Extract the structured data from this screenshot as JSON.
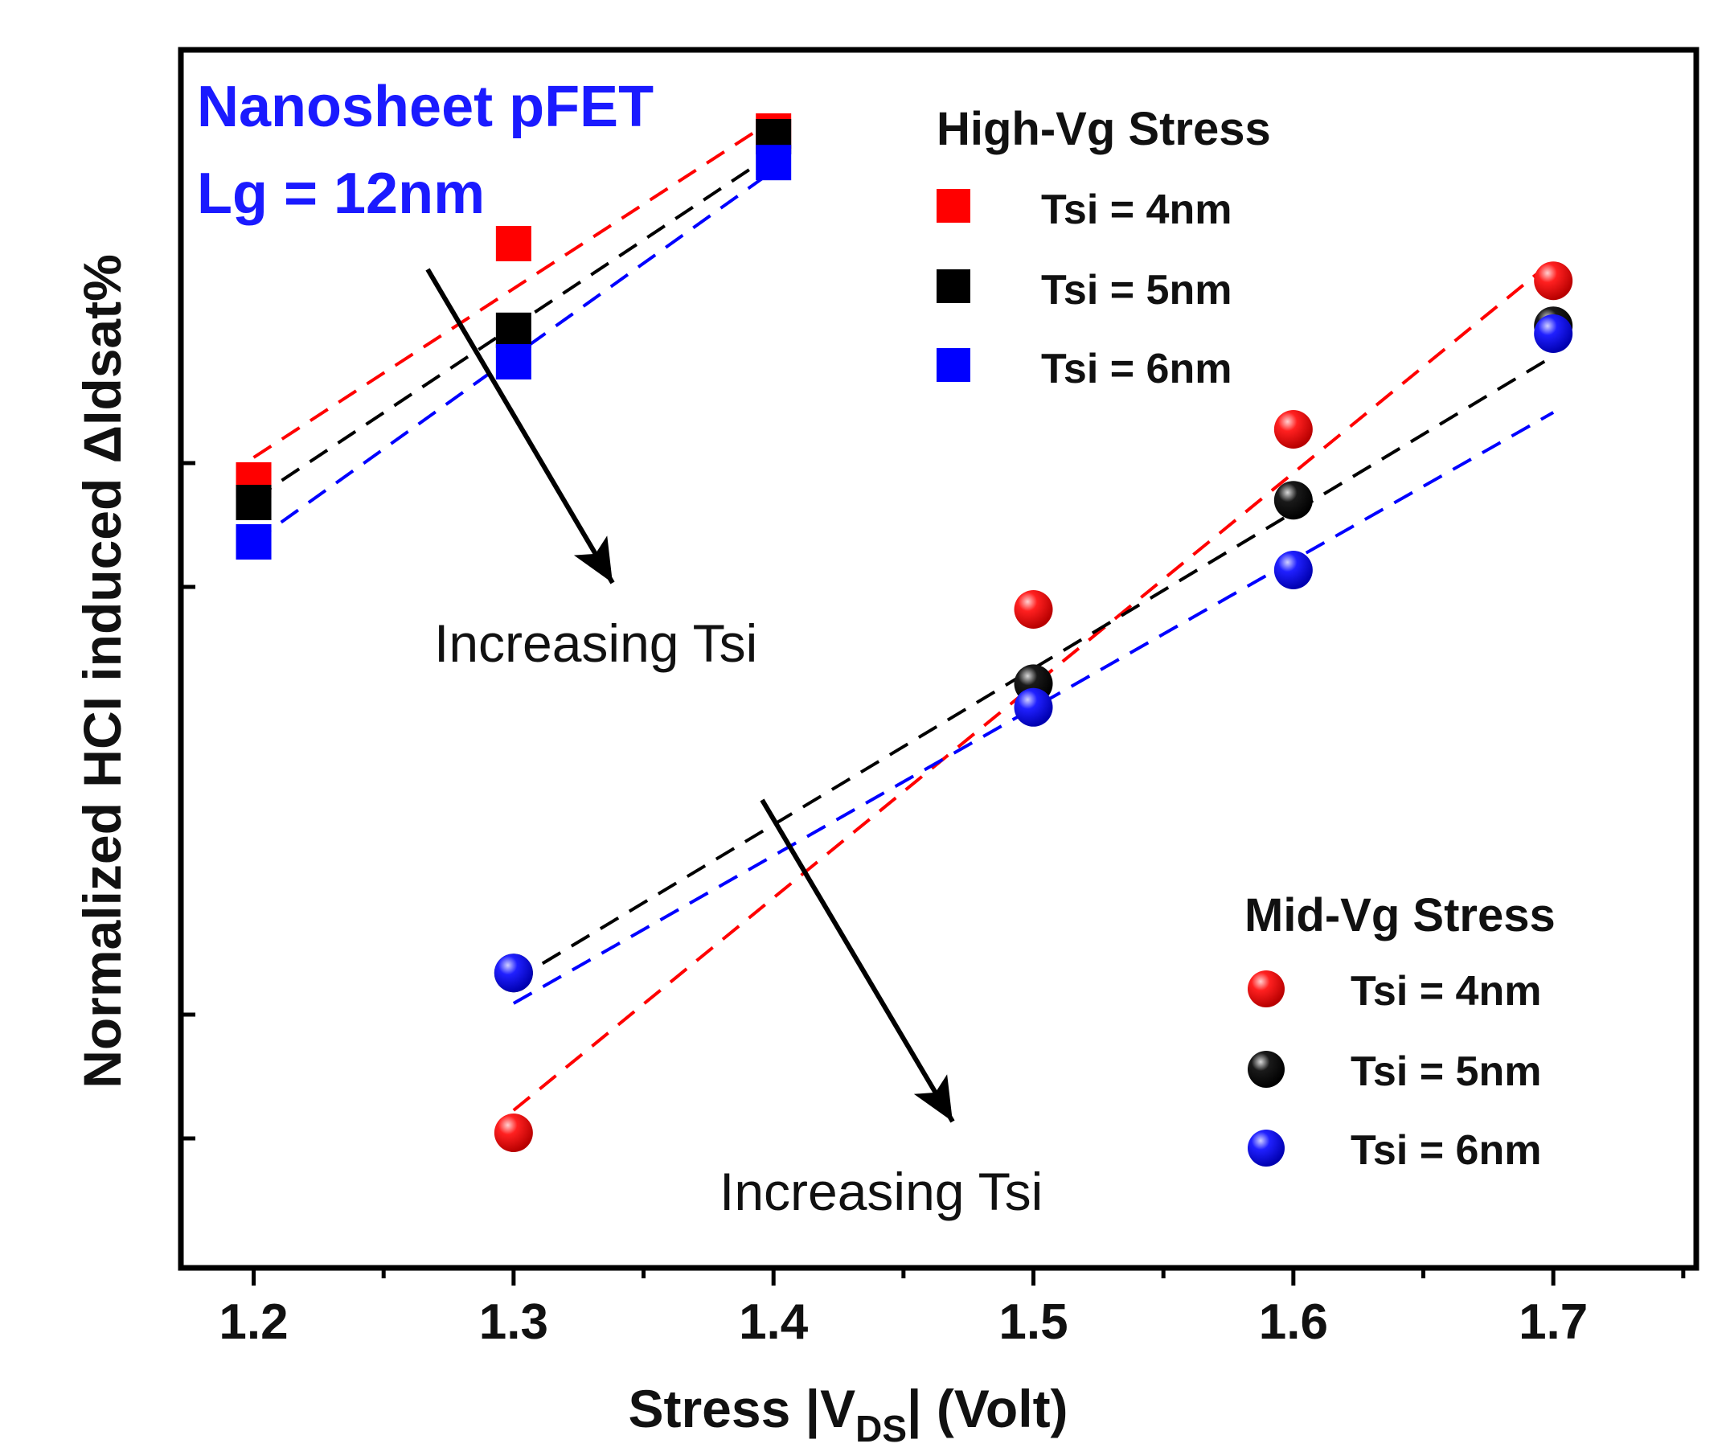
{
  "chart_data": {
    "type": "scatter",
    "xlabel_main": "Stress |V",
    "xlabel_sub": "DS",
    "xlabel_tail": "| (Volt)",
    "ylabel": "Normalized  HCI induced  ΔIdsat%",
    "xlim": [
      1.172,
      1.755
    ],
    "ylim": [
      0.0,
      1.0
    ],
    "x_ticks": [
      "1.2",
      "1.3",
      "1.4",
      "1.5",
      "1.6",
      "1.7"
    ],
    "annotation": {
      "line1": "Nanosheet pFET",
      "line2": "Lg = 12nm"
    },
    "arrow_labels": [
      "Increasing Tsi",
      "Increasing Tsi"
    ],
    "groups": [
      {
        "title": "High-Vg Stress",
        "marker": "square",
        "series": [
          {
            "name": "Tsi = 4nm",
            "color": "#ff0000",
            "x": [
              1.2,
              1.3,
              1.4
            ],
            "y": [
              0.645,
              0.855,
              0.955
            ],
            "fit": [
              [
                1.2,
                0.665
              ],
              [
                1.4,
                0.965
              ]
            ]
          },
          {
            "name": "Tsi = 5nm",
            "color": "#000000",
            "x": [
              1.2,
              1.3,
              1.4
            ],
            "y": [
              0.625,
              0.778,
              0.95
            ],
            "fit": [
              [
                1.2,
                0.628
              ],
              [
                1.4,
                0.935
              ]
            ]
          },
          {
            "name": "Tsi = 6nm",
            "color": "#0000ff",
            "x": [
              1.2,
              1.3,
              1.4
            ],
            "y": [
              0.59,
              0.75,
              0.927
            ],
            "fit": [
              [
                1.2,
                0.59
              ],
              [
                1.4,
                0.92
              ]
            ]
          }
        ]
      },
      {
        "title": "Mid-Vg Stress",
        "marker": "circle",
        "series": [
          {
            "name": "Tsi = 4nm",
            "color": "#ff0000",
            "x": [
              1.3,
              1.5,
              1.6,
              1.7
            ],
            "y": [
              0.065,
              0.53,
              0.69,
              0.822
            ],
            "fit": [
              [
                1.3,
                0.085
              ],
              [
                1.7,
                0.84
              ]
            ]
          },
          {
            "name": "Tsi = 5nm",
            "color": "#000000",
            "x": [
              1.3,
              1.5,
              1.6,
              1.7
            ],
            "y": [
              0.207,
              0.464,
              0.627,
              0.782
            ],
            "fit": [
              [
                1.3,
                0.2
              ],
              [
                1.7,
                0.755
              ]
            ]
          },
          {
            "name": "Tsi = 6nm",
            "color": "#0000ff",
            "x": [
              1.3,
              1.5,
              1.6,
              1.7
            ],
            "y": [
              0.207,
              0.443,
              0.565,
              0.775
            ],
            "fit": [
              [
                1.3,
                0.18
              ],
              [
                1.7,
                0.705
              ]
            ]
          }
        ]
      }
    ]
  }
}
